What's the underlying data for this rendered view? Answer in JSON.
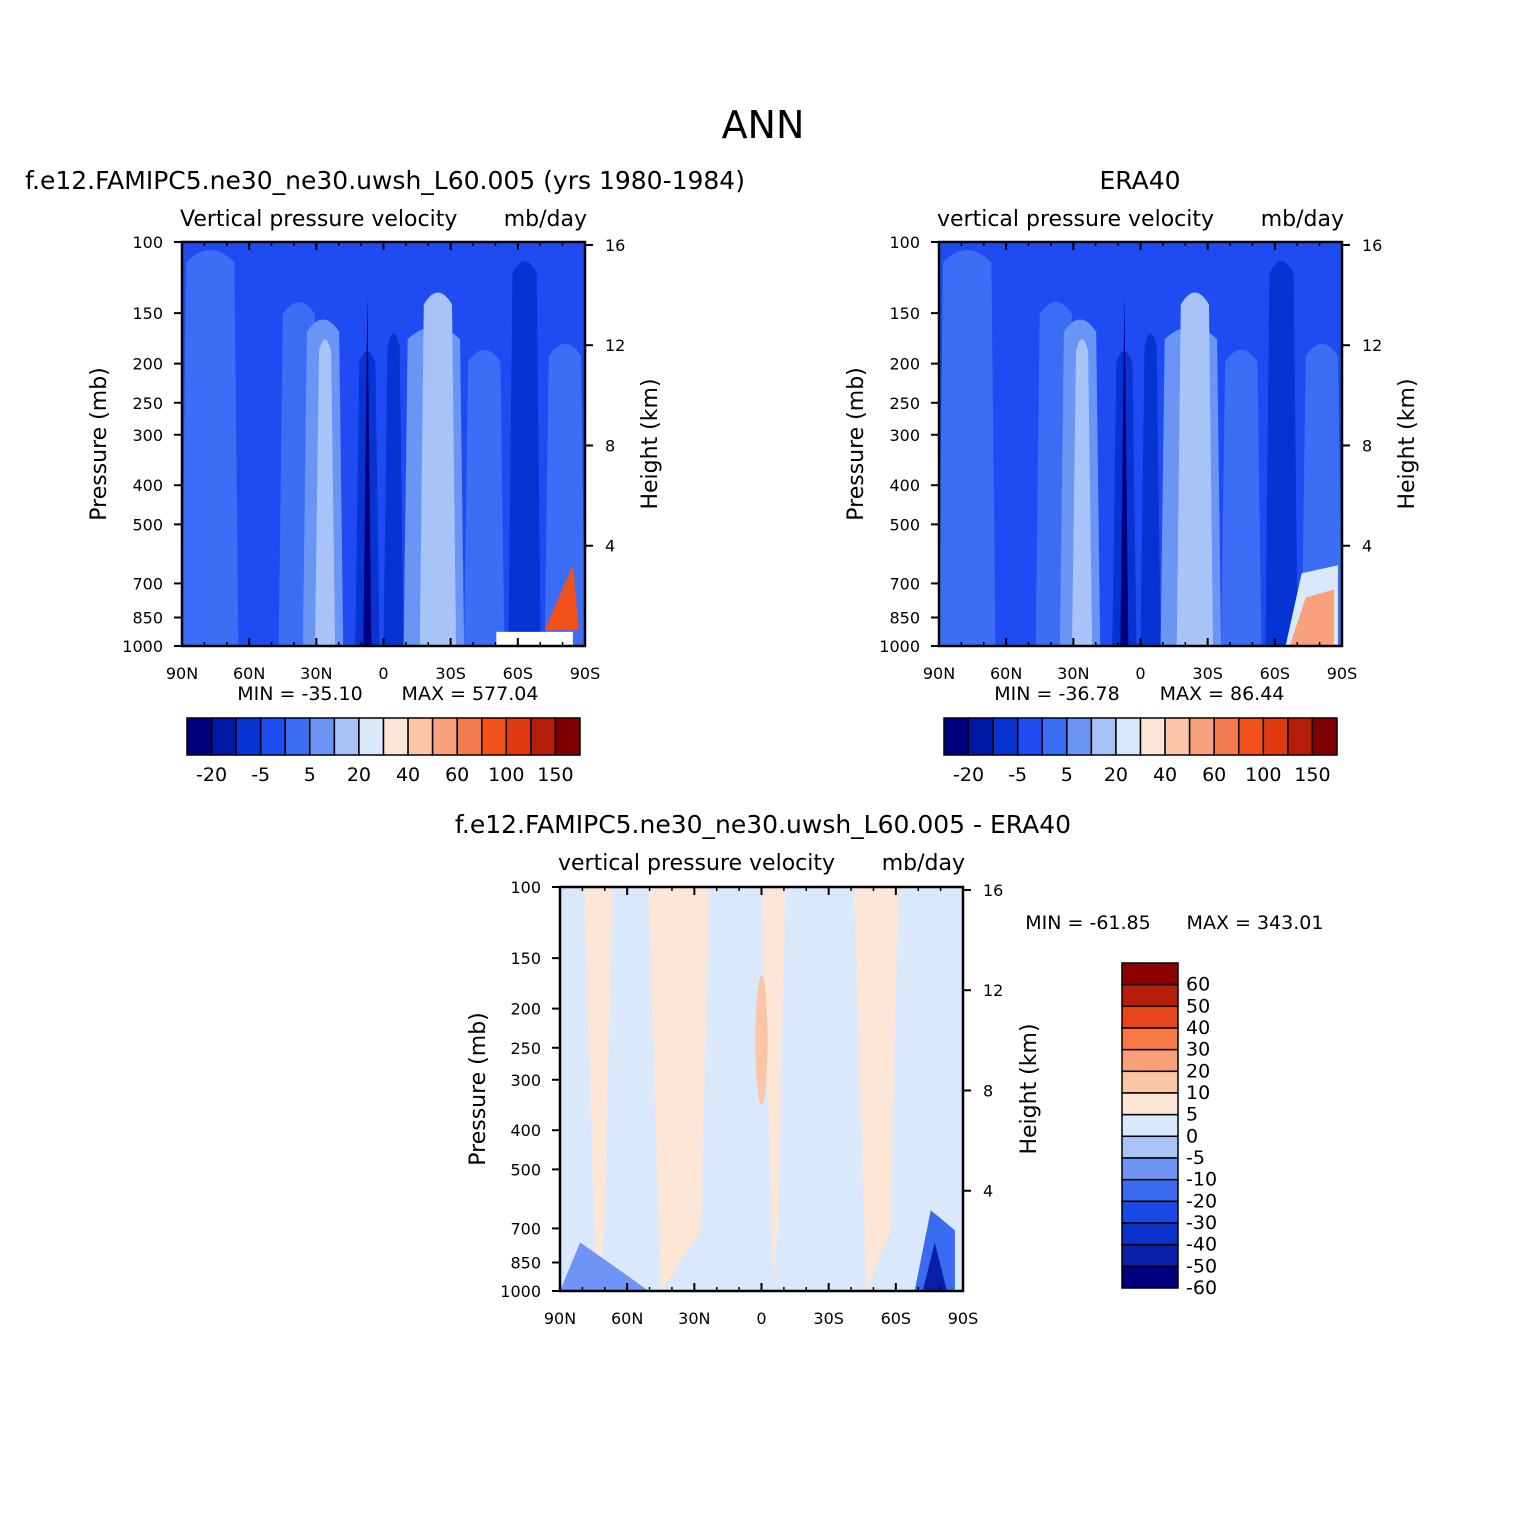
{
  "page_title": "ANN",
  "chart_data": [
    {
      "type": "heatmap",
      "title": "f.e12.FAMIPC5.ne30_ne30.uwsh_L60.005 (yrs 1980-1984)",
      "variable": "Vertical pressure velocity",
      "units": "mb/day",
      "ylabel": "Pressure (mb)",
      "y2label": "Height (km)",
      "x_ticks": [
        "90N",
        "60N",
        "30N",
        "0",
        "30S",
        "60S",
        "90S"
      ],
      "y_ticks": [
        "100",
        "150",
        "200",
        "250",
        "300",
        "400",
        "500",
        "700",
        "850",
        "1000"
      ],
      "y2_ticks": [
        "16",
        "12",
        "8",
        "4"
      ],
      "y_scale": "log",
      "min_label": "MIN = -35.10",
      "max_label": "MAX = 577.04",
      "stats": {
        "min": -35.1,
        "max": 577.04
      },
      "colorbar_colors": [
        "#00007f",
        "#0019a6",
        "#0633d1",
        "#1e4cf2",
        "#3b6ef5",
        "#6b95f5",
        "#a8c3f7",
        "#d9e8fb",
        "#fde6d6",
        "#fcc5a8",
        "#f9a07d",
        "#f47a50",
        "#f2511b",
        "#e03a10",
        "#b71e0a",
        "#7f0000"
      ],
      "colorbar_labels": [
        "-20",
        "-5",
        "5",
        "20",
        "40",
        "60",
        "100",
        "150"
      ],
      "colorbar_orientation": "horizontal",
      "legend": "bottom"
    },
    {
      "type": "heatmap",
      "title": "ERA40",
      "variable": "vertical pressure velocity",
      "units": "mb/day",
      "ylabel": "Pressure (mb)",
      "y2label": "Height (km)",
      "x_ticks": [
        "90N",
        "60N",
        "30N",
        "0",
        "30S",
        "60S",
        "90S"
      ],
      "y_ticks": [
        "100",
        "150",
        "200",
        "250",
        "300",
        "400",
        "500",
        "700",
        "850",
        "1000"
      ],
      "y2_ticks": [
        "16",
        "12",
        "8",
        "4"
      ],
      "y_scale": "log",
      "min_label": "MIN = -36.78",
      "max_label": "MAX = 86.44",
      "stats": {
        "min": -36.78,
        "max": 86.44
      },
      "colorbar_colors": [
        "#00007f",
        "#0019a6",
        "#0633d1",
        "#1e4cf2",
        "#3b6ef5",
        "#6b95f5",
        "#a8c3f7",
        "#d9e8fb",
        "#fde6d6",
        "#fcc5a8",
        "#f9a07d",
        "#f47a50",
        "#f2511b",
        "#e03a10",
        "#b71e0a",
        "#7f0000"
      ],
      "colorbar_labels": [
        "-20",
        "-5",
        "5",
        "20",
        "40",
        "60",
        "100",
        "150"
      ],
      "colorbar_orientation": "horizontal",
      "legend": "bottom"
    },
    {
      "type": "heatmap",
      "title": "f.e12.FAMIPC5.ne30_ne30.uwsh_L60.005 - ERA40",
      "variable": "vertical pressure velocity",
      "units": "mb/day",
      "ylabel": "Pressure (mb)",
      "y2label": "Height (km)",
      "x_ticks": [
        "90N",
        "60N",
        "30N",
        "0",
        "30S",
        "60S",
        "90S"
      ],
      "y_ticks": [
        "100",
        "150",
        "200",
        "250",
        "300",
        "400",
        "500",
        "700",
        "850",
        "1000"
      ],
      "y2_ticks": [
        "16",
        "12",
        "8",
        "4"
      ],
      "y_scale": "log",
      "min_label": "MIN = -61.85",
      "max_label": "MAX = 343.01",
      "stats": {
        "min": -61.85,
        "max": 343.01
      },
      "colorbar_colors": [
        "#000080",
        "#0a1fa8",
        "#0a33cc",
        "#1a4ae6",
        "#3a6af0",
        "#6e95f5",
        "#a9c5f8",
        "#d9e8fb",
        "#fde6d6",
        "#fbc6a6",
        "#f9a07a",
        "#f77a45",
        "#e8461a",
        "#b71e0a",
        "#8b0000"
      ],
      "colorbar_labels": [
        "60",
        "50",
        "40",
        "30",
        "20",
        "10",
        "5",
        "0",
        "-5",
        "-10",
        "-20",
        "-30",
        "-40",
        "-50",
        "-60"
      ],
      "colorbar_orientation": "vertical",
      "legend": "right"
    }
  ]
}
